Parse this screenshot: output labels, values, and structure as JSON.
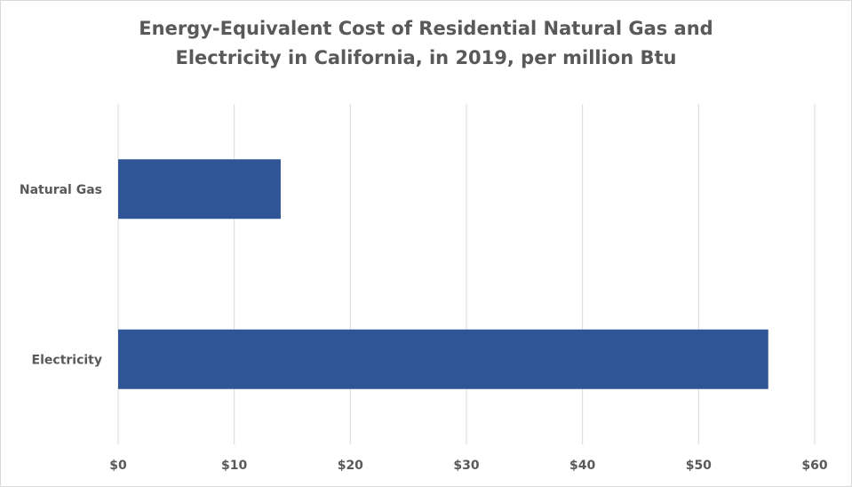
{
  "chart_data": {
    "type": "bar",
    "orientation": "horizontal",
    "title_lines": [
      "Energy-Equivalent Cost of Residential  Natural Gas and",
      "Electricity  in California, in 2019, per million Btu"
    ],
    "categories": [
      "Natural Gas",
      "Electricity"
    ],
    "values": [
      14,
      56
    ],
    "xlim": [
      0,
      60
    ],
    "x_ticks": [
      0,
      10,
      20,
      30,
      40,
      50,
      60
    ],
    "x_tick_labels": [
      "$0",
      "$10",
      "$20",
      "$30",
      "$40",
      "$50",
      "$60"
    ],
    "grid": "vertical",
    "legend": "none",
    "bar_color": "#2F5597",
    "grid_color": "#d9d9d9",
    "text_color": "#595959"
  }
}
